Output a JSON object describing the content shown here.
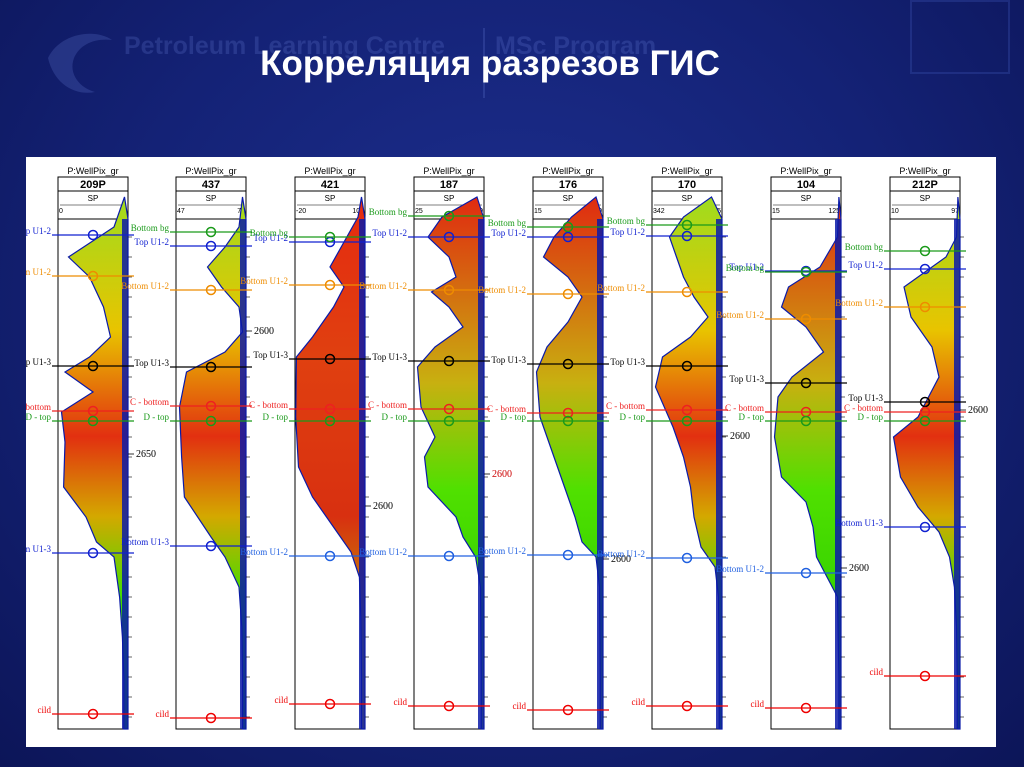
{
  "slide": {
    "title": "Корреляция разрезов ГИС"
  },
  "logo": {
    "brand": "Petroleum Learning Centre",
    "program": "MSc Program",
    "sub_line1": "",
    "sub_line2": ""
  },
  "colors": {
    "background": "#142276",
    "panel": "#ffffff",
    "log_fill_dark": "#0a1aa8"
  },
  "wells": [
    {
      "name": "209P",
      "header": "P:WellPix_gr",
      "curve": "SP",
      "scale_min": "0",
      "scale_max": "90",
      "depth_label": "2650",
      "depth_label_color": "#000000"
    },
    {
      "name": "437",
      "header": "P:WellPix_gr",
      "curve": "SP",
      "scale_min": "47",
      "scale_max": "77",
      "depth_label": "2600",
      "depth_label_color": "#000000"
    },
    {
      "name": "421",
      "header": "P:WellPix_gr",
      "curve": "SP",
      "scale_min": "-20",
      "scale_max": "103",
      "depth_label": "2600",
      "depth_label_color": "#000000"
    },
    {
      "name": "187",
      "header": "P:WellPix_gr",
      "curve": "SP",
      "scale_min": "25",
      "scale_max": "129",
      "depth_label": "2600",
      "depth_label_color": "#cc0000"
    },
    {
      "name": "176",
      "header": "P:WellPix_gr",
      "curve": "SP",
      "scale_min": "15",
      "scale_max": "120",
      "depth_label": "2600",
      "depth_label_color": "#000000"
    },
    {
      "name": "170",
      "header": "P:WellPix_gr",
      "curve": "SP",
      "scale_min": "342",
      "scale_max": "455",
      "depth_label": "2600",
      "depth_label_color": "#000000"
    },
    {
      "name": "104",
      "header": "P:WellPix_gr",
      "curve": "SP",
      "scale_min": "15",
      "scale_max": "125",
      "depth_label": "2600",
      "depth_label_color": "#000000"
    },
    {
      "name": "212P",
      "header": "P:WellPix_gr",
      "curve": "SP",
      "scale_min": "10",
      "scale_max": "97",
      "depth_label": "2600",
      "depth_label_color": "#000000"
    }
  ],
  "markers": {
    "bottom_bg": {
      "label": "Bottom bg",
      "color": "#1a9a1a"
    },
    "top_u1_2": {
      "label": "Top U1-2",
      "color": "#1020d0"
    },
    "bottom_u1_2_orange": {
      "label": "Bottom U1-2",
      "color": "#ee8c00"
    },
    "top_u1_3": {
      "label": "Top U1-3",
      "color": "#000000"
    },
    "c_bottom": {
      "label": "C - bottom",
      "color": "#ee2020"
    },
    "d_top": {
      "label": "D - top",
      "color": "#1a9a1a"
    },
    "bottom_u1_3": {
      "label": "Bottom U1-3",
      "color": "#1020d0"
    },
    "bottom_u1_2_blue": {
      "label": "Bottom U1-2",
      "color": "#2060e0"
    },
    "cild": {
      "label": "cild",
      "color": "#ee0000"
    }
  }
}
